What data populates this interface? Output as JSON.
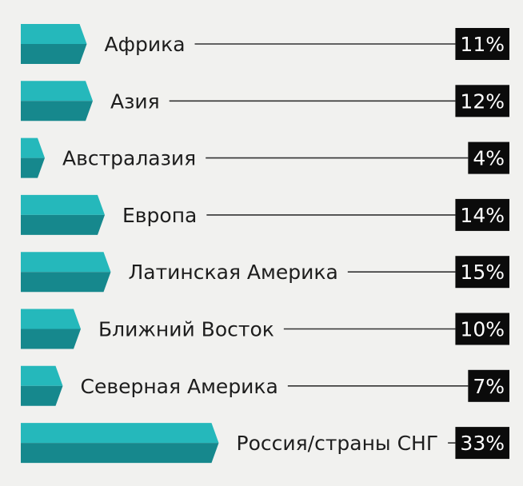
{
  "chart_data": {
    "type": "bar",
    "orientation": "horizontal",
    "categories": [
      "Африка",
      "Азия",
      "Австралазия",
      "Европа",
      "Латинская Америка",
      "Ближний Восток",
      "Северная Америка",
      "Россия/страны СНГ"
    ],
    "values": [
      11,
      12,
      4,
      14,
      15,
      10,
      7,
      33
    ],
    "value_labels": [
      "11%",
      "12%",
      "4%",
      "14%",
      "15%",
      "10%",
      "7%",
      "33%"
    ],
    "unit": "%",
    "grid": false,
    "legend": "none",
    "colors": {
      "bar_top": "#25b8bb",
      "bar_bottom": "#16888d",
      "badge": "#0b0b0b",
      "leader_line": "#333333",
      "background": "#f1f1ef"
    }
  }
}
